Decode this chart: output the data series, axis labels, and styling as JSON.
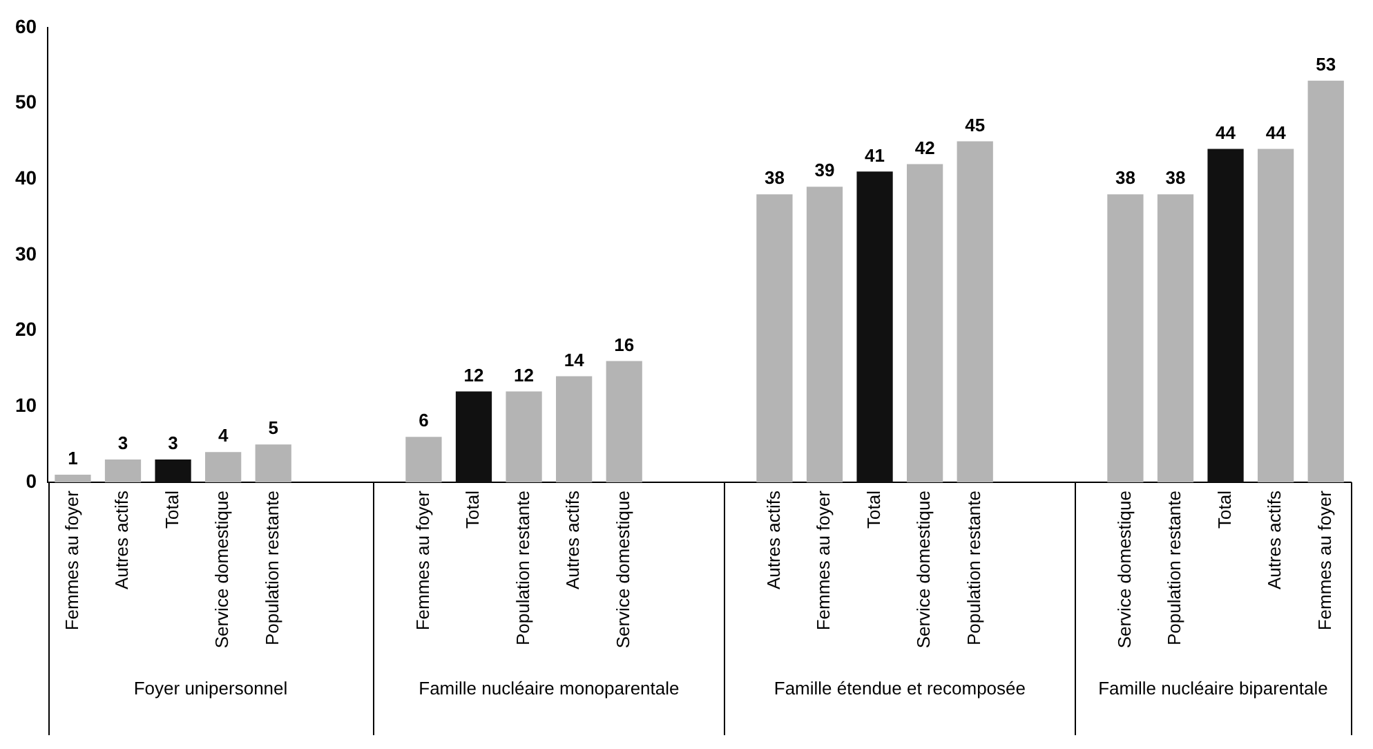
{
  "chart_data": {
    "type": "bar",
    "categories": [
      "Femmes au foyer",
      "Autres actifs",
      "Total",
      "Service domestique",
      "Population restante",
      null,
      null,
      "Femmes au foyer",
      "Total",
      "Population restante",
      "Autres actifs",
      "Service domestique",
      null,
      null,
      "Autres actifs",
      "Femmes au foyer",
      "Total",
      "Service domestique",
      "Population restante",
      null,
      null,
      "Service domestique",
      "Population restante",
      "Total",
      "Autres actifs",
      "Femmes au foyer"
    ],
    "values": [
      1,
      3,
      3,
      4,
      5,
      null,
      null,
      6,
      12,
      12,
      14,
      16,
      null,
      null,
      38,
      39,
      41,
      42,
      45,
      null,
      null,
      38,
      38,
      44,
      44,
      53
    ],
    "colors": [
      "#b4b4b4",
      "#b4b4b4",
      "#111111",
      "#b4b4b4",
      "#b4b4b4",
      null,
      null,
      "#b4b4b4",
      "#111111",
      "#b4b4b4",
      "#b4b4b4",
      "#b4b4b4",
      null,
      null,
      "#b4b4b4",
      "#b4b4b4",
      "#111111",
      "#b4b4b4",
      "#b4b4b4",
      null,
      null,
      "#b4b4b4",
      "#b4b4b4",
      "#111111",
      "#b4b4b4",
      "#b4b4b4"
    ],
    "ylim": [
      0,
      60
    ],
    "yticks": [
      0,
      10,
      20,
      30,
      40,
      50,
      60
    ],
    "grid": false,
    "legend": false,
    "data_labels": true,
    "annotations": [
      "Foyer unipersonnel",
      "Famille nucléaire monoparentale",
      "Famille étendue et recomposée",
      "Famille nucléaire biparentale"
    ]
  }
}
